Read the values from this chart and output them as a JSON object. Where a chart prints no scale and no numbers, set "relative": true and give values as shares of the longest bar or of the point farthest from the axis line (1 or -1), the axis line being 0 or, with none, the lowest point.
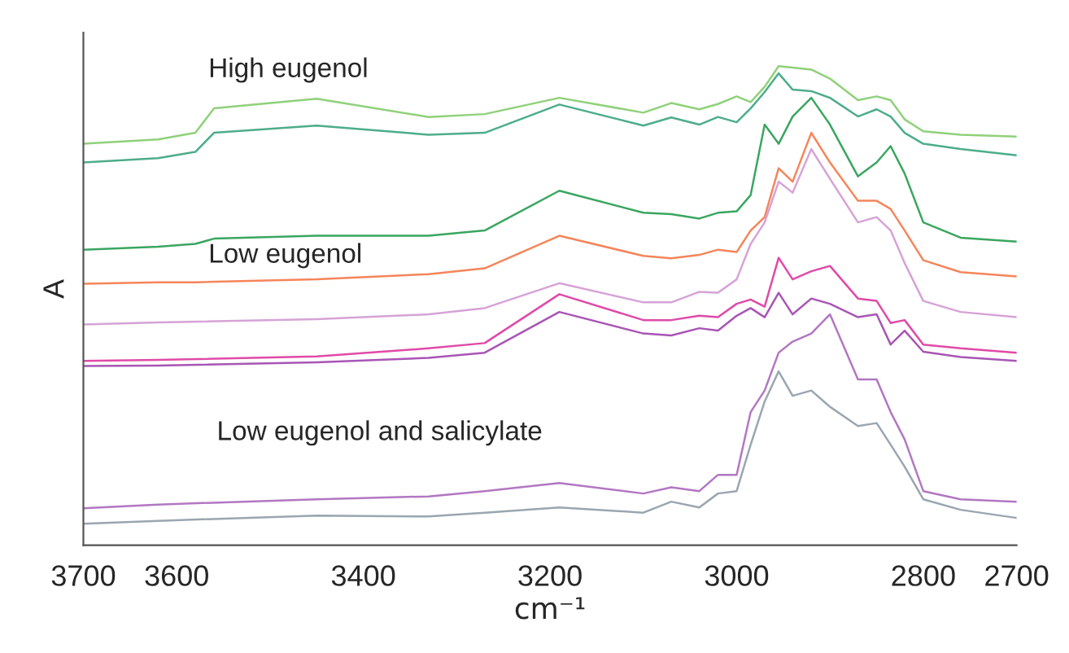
{
  "chart_data": {
    "type": "line",
    "relative": true,
    "xlabel": "cm⁻¹",
    "ylabel": "A",
    "annotations": [
      "High eugenol",
      "Low eugenol",
      "Low eugenol and salicylate"
    ],
    "xlim": [
      3700,
      2700
    ],
    "xticks": [
      3700,
      3600,
      3400,
      3200,
      3000,
      2800,
      2700
    ],
    "grid": false,
    "legend": false,
    "marker": "none",
    "line_style": "solid",
    "series": [
      {
        "color": "#8fd17a",
        "x": [
          3700,
          3620,
          3580,
          3560,
          3450,
          3330,
          3270,
          3190,
          3100,
          3070,
          3040,
          3020,
          3000,
          2985,
          2970,
          2955,
          2940,
          2920,
          2900,
          2870,
          2850,
          2835,
          2820,
          2800,
          2760,
          2700
        ],
        "values": [
          0.838,
          0.847,
          0.861,
          0.912,
          0.932,
          0.894,
          0.9,
          0.934,
          0.903,
          0.923,
          0.91,
          0.921,
          0.937,
          0.925,
          0.957,
          1.0,
          0.997,
          0.993,
          0.974,
          0.929,
          0.937,
          0.929,
          0.889,
          0.864,
          0.857,
          0.853
        ]
      },
      {
        "color": "#4dad8a",
        "x": [
          3700,
          3620,
          3580,
          3560,
          3450,
          3330,
          3270,
          3190,
          3100,
          3070,
          3040,
          3020,
          3000,
          2985,
          2970,
          2955,
          2940,
          2920,
          2900,
          2870,
          2850,
          2835,
          2820,
          2800,
          2760,
          2700
        ],
        "values": [
          0.799,
          0.808,
          0.821,
          0.861,
          0.876,
          0.857,
          0.861,
          0.92,
          0.876,
          0.893,
          0.878,
          0.894,
          0.883,
          0.912,
          0.946,
          0.985,
          0.951,
          0.948,
          0.934,
          0.895,
          0.91,
          0.895,
          0.861,
          0.838,
          0.827,
          0.814
        ]
      },
      {
        "color": "#3aa660",
        "x": [
          3700,
          3620,
          3580,
          3560,
          3450,
          3330,
          3270,
          3190,
          3100,
          3070,
          3040,
          3020,
          3000,
          2985,
          2970,
          2955,
          2940,
          2920,
          2900,
          2870,
          2850,
          2835,
          2820,
          2800,
          2760,
          2700
        ],
        "values": [
          0.617,
          0.623,
          0.629,
          0.64,
          0.646,
          0.646,
          0.657,
          0.74,
          0.694,
          0.691,
          0.682,
          0.694,
          0.697,
          0.731,
          0.878,
          0.838,
          0.895,
          0.934,
          0.878,
          0.77,
          0.799,
          0.833,
          0.776,
          0.674,
          0.642,
          0.634
        ]
      },
      {
        "color": "#f5855a",
        "x": [
          3700,
          3620,
          3580,
          3450,
          3330,
          3270,
          3190,
          3100,
          3070,
          3040,
          3020,
          3000,
          2985,
          2970,
          2955,
          2940,
          2920,
          2900,
          2870,
          2850,
          2835,
          2820,
          2800,
          2760,
          2700
        ],
        "values": [
          0.546,
          0.549,
          0.549,
          0.555,
          0.566,
          0.578,
          0.646,
          0.604,
          0.599,
          0.606,
          0.617,
          0.612,
          0.657,
          0.685,
          0.787,
          0.759,
          0.861,
          0.799,
          0.719,
          0.719,
          0.702,
          0.657,
          0.595,
          0.57,
          0.561
        ]
      },
      {
        "color": "#d6a3d6",
        "x": [
          3700,
          3620,
          3450,
          3330,
          3270,
          3190,
          3100,
          3070,
          3040,
          3020,
          3000,
          2985,
          2970,
          2955,
          2940,
          2920,
          2900,
          2870,
          2850,
          2835,
          2820,
          2800,
          2760,
          2700
        ],
        "values": [
          0.461,
          0.465,
          0.472,
          0.482,
          0.495,
          0.547,
          0.507,
          0.507,
          0.529,
          0.527,
          0.555,
          0.629,
          0.674,
          0.759,
          0.736,
          0.827,
          0.765,
          0.674,
          0.685,
          0.657,
          0.589,
          0.51,
          0.487,
          0.476
        ]
      },
      {
        "color": "#e04aa8",
        "x": [
          3700,
          3620,
          3450,
          3330,
          3270,
          3190,
          3100,
          3070,
          3040,
          3020,
          3000,
          2985,
          2970,
          2955,
          2940,
          2920,
          2900,
          2870,
          2850,
          2835,
          2820,
          2800,
          2760,
          2700
        ],
        "values": [
          0.385,
          0.387,
          0.394,
          0.411,
          0.422,
          0.524,
          0.47,
          0.47,
          0.479,
          0.476,
          0.504,
          0.513,
          0.498,
          0.6,
          0.555,
          0.572,
          0.583,
          0.515,
          0.51,
          0.464,
          0.47,
          0.419,
          0.411,
          0.402
        ]
      },
      {
        "color": "#a855b5",
        "x": [
          3700,
          3620,
          3450,
          3330,
          3270,
          3190,
          3100,
          3070,
          3040,
          3020,
          3000,
          2985,
          2970,
          2955,
          2940,
          2920,
          2900,
          2870,
          2850,
          2835,
          2820,
          2800,
          2760,
          2700
        ],
        "values": [
          0.374,
          0.375,
          0.382,
          0.391,
          0.402,
          0.487,
          0.442,
          0.438,
          0.453,
          0.448,
          0.479,
          0.495,
          0.476,
          0.527,
          0.482,
          0.515,
          0.504,
          0.476,
          0.482,
          0.419,
          0.448,
          0.404,
          0.393,
          0.385
        ]
      },
      {
        "color": "#b277c2",
        "x": [
          3700,
          3620,
          3450,
          3330,
          3270,
          3190,
          3100,
          3070,
          3040,
          3020,
          3000,
          2985,
          2970,
          2955,
          2940,
          2920,
          2900,
          2870,
          2850,
          2835,
          2820,
          2800,
          2760,
          2700
        ],
        "values": [
          0.077,
          0.085,
          0.096,
          0.102,
          0.113,
          0.13,
          0.108,
          0.121,
          0.113,
          0.147,
          0.147,
          0.278,
          0.323,
          0.402,
          0.425,
          0.442,
          0.482,
          0.346,
          0.346,
          0.278,
          0.221,
          0.113,
          0.096,
          0.091
        ]
      },
      {
        "color": "#9aa6b0",
        "x": [
          3700,
          3620,
          3450,
          3330,
          3270,
          3190,
          3100,
          3070,
          3040,
          3020,
          3000,
          2985,
          2970,
          2955,
          2940,
          2920,
          2900,
          2870,
          2850,
          2835,
          2820,
          2800,
          2760,
          2700
        ],
        "values": [
          0.045,
          0.051,
          0.062,
          0.06,
          0.068,
          0.079,
          0.068,
          0.091,
          0.079,
          0.108,
          0.113,
          0.21,
          0.3,
          0.363,
          0.312,
          0.323,
          0.289,
          0.249,
          0.255,
          0.21,
          0.164,
          0.096,
          0.074,
          0.057
        ]
      }
    ]
  }
}
